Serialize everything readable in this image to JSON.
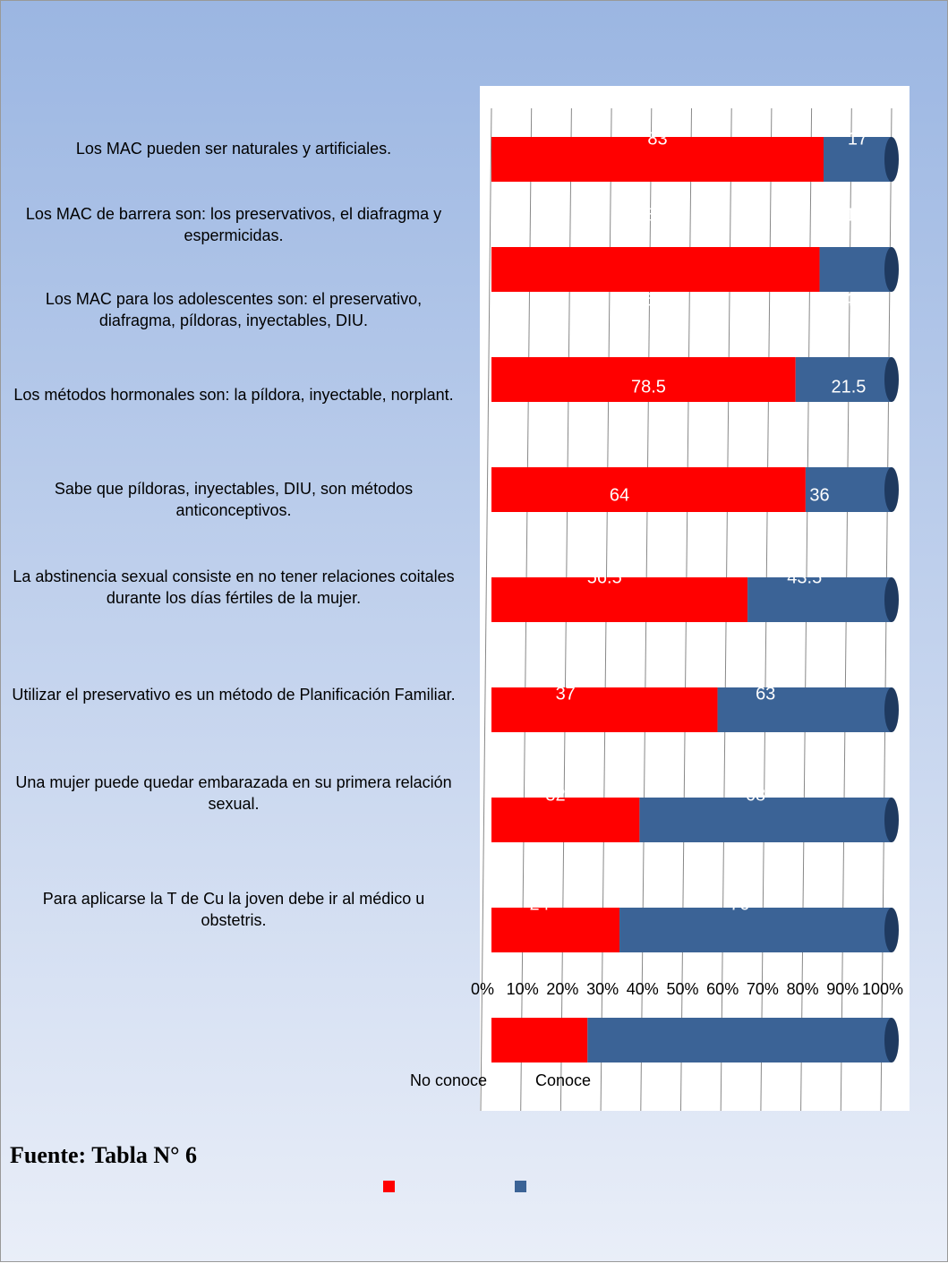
{
  "chart_data": {
    "type": "stacked-bar-100",
    "categories": [
      "Los MAC pueden ser naturales y artificiales.",
      "Los MAC de barrera son: los preservativos, el diafragma y espermicidas.",
      "Los MAC para los adolescentes son: el preservativo,  diafragma, píldoras, inyectables, DIU.",
      "Los métodos hormonales son: la píldora, inyectable, norplant.",
      "Sabe que píldoras, inyectables, DIU, son métodos anticonceptivos.",
      "La abstinencia sexual consiste en no tener relaciones  coitales durante los días fértiles de la mujer.",
      "Utilizar el preservativo es un método de Planificación Familiar.",
      "Una mujer puede quedar embarazada en su primera relación sexual.",
      "Para aplicarse la T de Cu la joven debe ir al médico u obstetris."
    ],
    "series": [
      {
        "name": "No conoce",
        "color": "#ff0000",
        "values": [
          83,
          82,
          76,
          78.5,
          64,
          56.5,
          37,
          32,
          24
        ]
      },
      {
        "name": "Conoce",
        "color": "#3b6396",
        "values": [
          17,
          18,
          24,
          21.5,
          36,
          43.5,
          63,
          68,
          76
        ]
      }
    ],
    "xlim": [
      0,
      100
    ],
    "xticks": [
      {
        "value": 0,
        "label": "0%"
      },
      {
        "value": 10,
        "label": "10%"
      },
      {
        "value": 20,
        "label": "20%"
      },
      {
        "value": 30,
        "label": "30%"
      },
      {
        "value": 40,
        "label": "40%"
      },
      {
        "value": 50,
        "label": "50%"
      },
      {
        "value": 60,
        "label": "60%"
      },
      {
        "value": 70,
        "label": "70%"
      },
      {
        "value": 80,
        "label": "80%"
      },
      {
        "value": 90,
        "label": "90%"
      },
      {
        "value": 100,
        "label": "100%"
      }
    ],
    "grid": true
  },
  "footer": "Fuente: Tabla N° 6"
}
